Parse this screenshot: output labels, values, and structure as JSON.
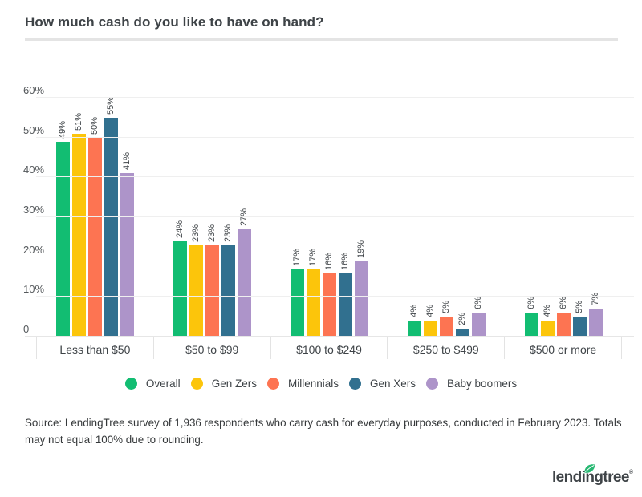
{
  "title": "How much cash do you like to have on hand?",
  "chart_data": {
    "type": "bar",
    "title": "How much cash do you like to have on hand?",
    "categories": [
      "Less than $50",
      "$50 to $99",
      "$100 to $249",
      "$250 to $499",
      "$500 or more"
    ],
    "series": [
      {
        "name": "Overall",
        "color": "#12BD72",
        "values": [
          49,
          24,
          17,
          4,
          6
        ]
      },
      {
        "name": "Gen Zers",
        "color": "#FCC50B",
        "values": [
          51,
          23,
          17,
          4,
          4
        ]
      },
      {
        "name": "Millennials",
        "color": "#FD7452",
        "values": [
          50,
          23,
          16,
          5,
          6
        ]
      },
      {
        "name": "Gen Xers",
        "color": "#31708F",
        "values": [
          55,
          23,
          16,
          2,
          5
        ]
      },
      {
        "name": "Baby boomers",
        "color": "#AD94C9",
        "values": [
          41,
          27,
          19,
          6,
          7
        ]
      }
    ],
    "value_suffix": "%",
    "y_ticks": [
      {
        "value": 60,
        "label": "60%"
      },
      {
        "value": 50,
        "label": "50%"
      },
      {
        "value": 40,
        "label": "40%"
      },
      {
        "value": 30,
        "label": "30%"
      },
      {
        "value": 20,
        "label": "20%"
      },
      {
        "value": 10,
        "label": "10%"
      },
      {
        "value": 0,
        "label": "0"
      }
    ],
    "ylim": [
      0,
      60
    ],
    "grid": true,
    "legend_position": "bottom",
    "data_label_style": "rotated-vertical"
  },
  "source_note": "Source: LendingTree survey of 1,936 respondents who carry cash for everyday purposes, conducted in February 2023. Totals may not equal 100% due to rounding.",
  "branding": {
    "logo_text": "lendingtree",
    "registered_mark": "®",
    "leaf_color": "#28B873",
    "logo_color": "#3F4448"
  }
}
